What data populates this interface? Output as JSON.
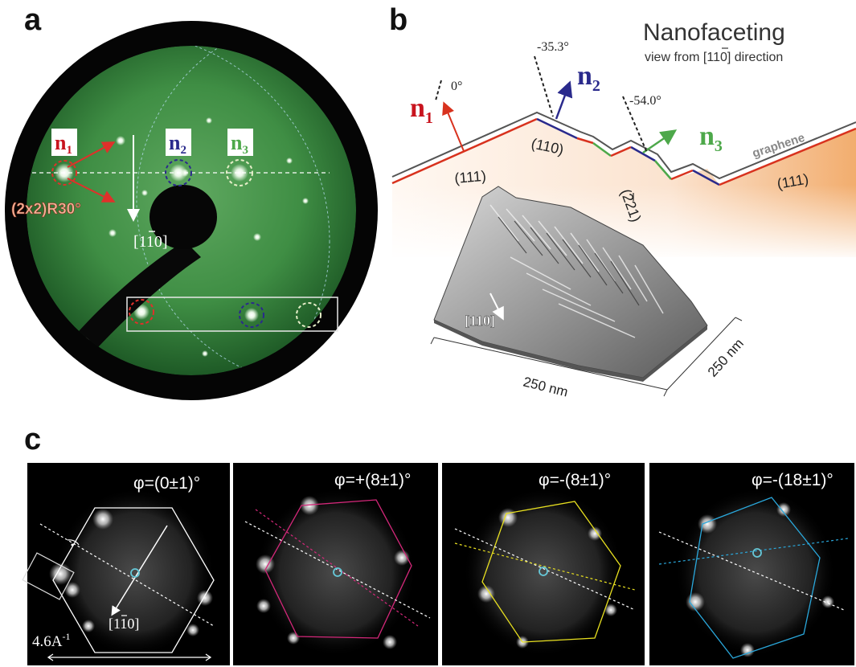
{
  "panel_a": {
    "letter": "a",
    "spot_labels": [
      {
        "main": "n",
        "sub": "1",
        "color": "#c8141e"
      },
      {
        "main": "n",
        "sub": "2",
        "color": "#2a2a8c"
      },
      {
        "main": "n",
        "sub": "3",
        "color": "#4da84a"
      }
    ],
    "reconstruction": "(2x2)R30°",
    "direction": "[1",
    "direction_bar": "1",
    "direction_end": "0]"
  },
  "panel_b": {
    "letter": "b",
    "title": "Nanofaceting",
    "subtitle_pre": "view from [1",
    "subtitle_bar": "1",
    "subtitle_post": "0] direction",
    "normals": [
      {
        "main": "n",
        "sub": "1",
        "angle": "0°",
        "color": "#c8141e"
      },
      {
        "main": "n",
        "sub": "2",
        "angle": "-35.3°",
        "color": "#2a2a8c"
      },
      {
        "main": "n",
        "sub": "3",
        "angle": "-54.0°",
        "color": "#4da84a"
      }
    ],
    "facets": [
      "(111)",
      "(110)",
      "(221)",
      "(111)"
    ],
    "graphene_label": "graphene",
    "stm_direction_pre": "[1",
    "stm_direction_bar": "1",
    "stm_direction_post": "0]",
    "axis_x": "250 nm",
    "axis_y": "250 nm"
  },
  "panel_c": {
    "letter": "c",
    "subpanels": [
      {
        "phi": "φ=(0±1)°",
        "color": "#ffffff"
      },
      {
        "phi": "φ=+(8±1)°",
        "color": "#d4287a"
      },
      {
        "phi": "φ=-(8±1)°",
        "color": "#e8e020"
      },
      {
        "phi": "φ=-(18±1)°",
        "color": "#2aa8dc"
      }
    ],
    "direction_pre": "[1",
    "direction_bar": "1",
    "direction_post": "0]",
    "scale": "4.6A",
    "scale_sup": "-1"
  }
}
